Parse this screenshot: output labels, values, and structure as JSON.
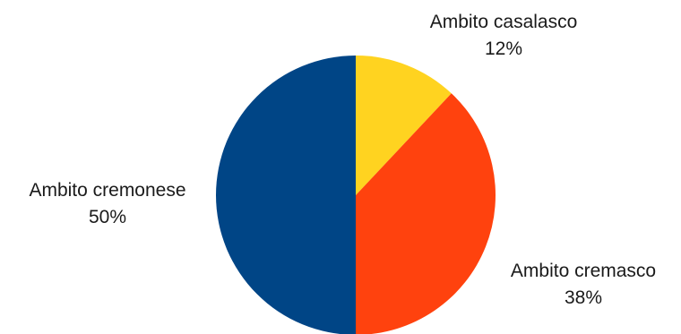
{
  "chart_data": {
    "type": "pie",
    "title": "",
    "slices": [
      {
        "name": "Ambito casalasco",
        "value": 12,
        "label": "12%",
        "color": "#FFD320"
      },
      {
        "name": "Ambito cremasco",
        "value": 38,
        "label": "38%",
        "color": "#FF420E"
      },
      {
        "name": "Ambito cremonese",
        "value": 50,
        "label": "50%",
        "color": "#004586"
      }
    ]
  }
}
